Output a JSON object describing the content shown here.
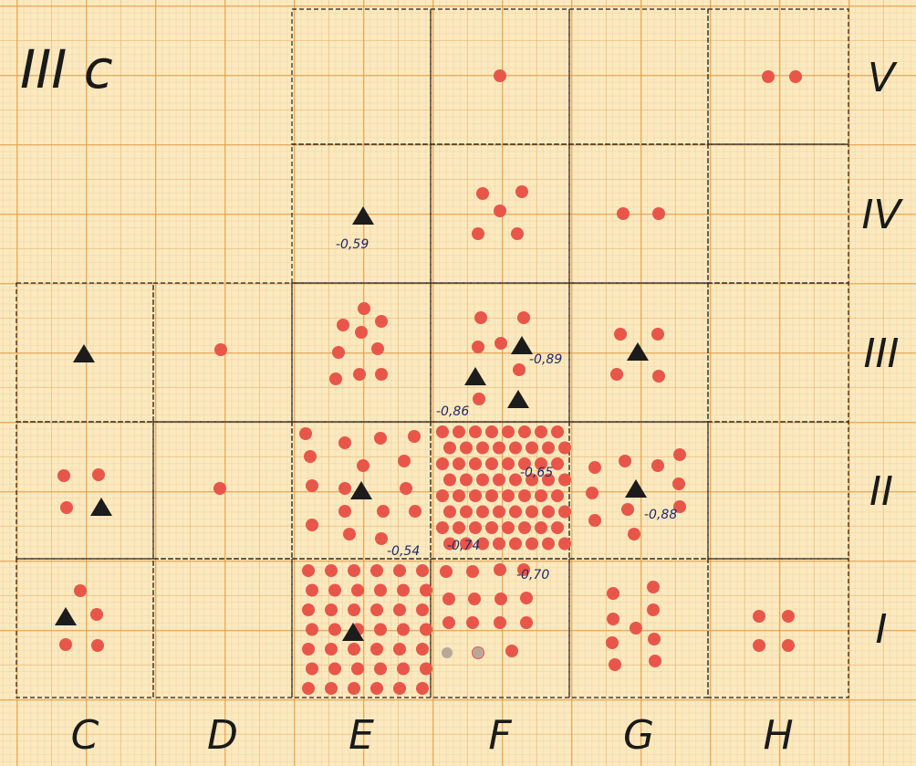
{
  "title": "III c",
  "row_labels": [
    "V",
    "IV",
    "III",
    "II",
    "I"
  ],
  "column_labels": [
    "C",
    "D",
    "E",
    "F",
    "G",
    "H"
  ],
  "annotations": [
    "-0,59",
    "-0,89",
    "-0,86",
    "-0,65",
    "-0,88",
    "-0,54",
    "-0,74",
    "-0,70"
  ]
}
